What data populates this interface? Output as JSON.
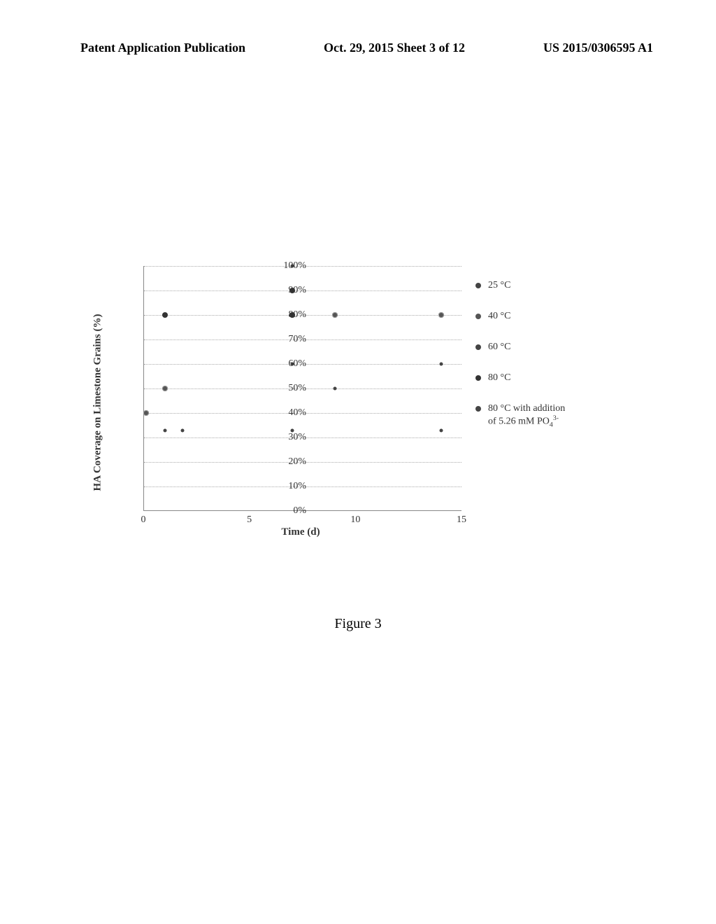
{
  "header": {
    "left": "Patent Application Publication",
    "center": "Oct. 29, 2015  Sheet 3 of 12",
    "right": "US 2015/0306595 A1"
  },
  "chart": {
    "type": "scatter",
    "ylabel": "HA Coverage on Limestone Grains (%)",
    "xlabel": "Time (d)",
    "xlim": [
      0,
      15
    ],
    "ylim": [
      0,
      100
    ],
    "ytick_step": 10,
    "xtick_step": 5,
    "background_color": "#ffffff",
    "grid_color": "#aaaaaa",
    "marker_color": "#333333",
    "label_fontsize": 14,
    "axis_fontsize": 15,
    "yticks": [
      "0%",
      "10%",
      "20%",
      "30%",
      "40%",
      "50%",
      "60%",
      "70%",
      "80%",
      "90%",
      "100%"
    ],
    "xticks": [
      "0",
      "5",
      "10",
      "15"
    ],
    "series": [
      {
        "label": "25 °C",
        "marker_style": "small",
        "points": [
          [
            1,
            33
          ],
          [
            1.8,
            33
          ],
          [
            7,
            33
          ],
          [
            14,
            33
          ]
        ]
      },
      {
        "label": "40 °C",
        "marker_style": "hatched",
        "points": [
          [
            0.1,
            40
          ],
          [
            1,
            50
          ],
          [
            7,
            80
          ],
          [
            9,
            80
          ],
          [
            14,
            80
          ]
        ]
      },
      {
        "label": "60 °C",
        "marker_style": "small",
        "points": [
          [
            7,
            60
          ],
          [
            9,
            50
          ],
          [
            14,
            60
          ]
        ]
      },
      {
        "label": "80 °C",
        "marker_style": "filled",
        "points": [
          [
            1,
            80
          ],
          [
            7,
            90
          ],
          [
            7,
            80
          ]
        ]
      },
      {
        "label": "80 °C with addition of 5.26 mM PO₄³⁻",
        "marker_style": "small",
        "points": [
          [
            7,
            100
          ]
        ]
      }
    ],
    "legend": [
      {
        "label": "25 °C",
        "color": "#444444"
      },
      {
        "label": "40 °C",
        "color": "#555555"
      },
      {
        "label": "60 °C",
        "color": "#444444"
      },
      {
        "label": "80 °C",
        "color": "#333333"
      },
      {
        "label_html": "80 °C with addition<br>of 5.26 mM PO<sub>4</sub><sup>3-</sup>",
        "color": "#444444"
      }
    ]
  },
  "caption": "Figure 3"
}
